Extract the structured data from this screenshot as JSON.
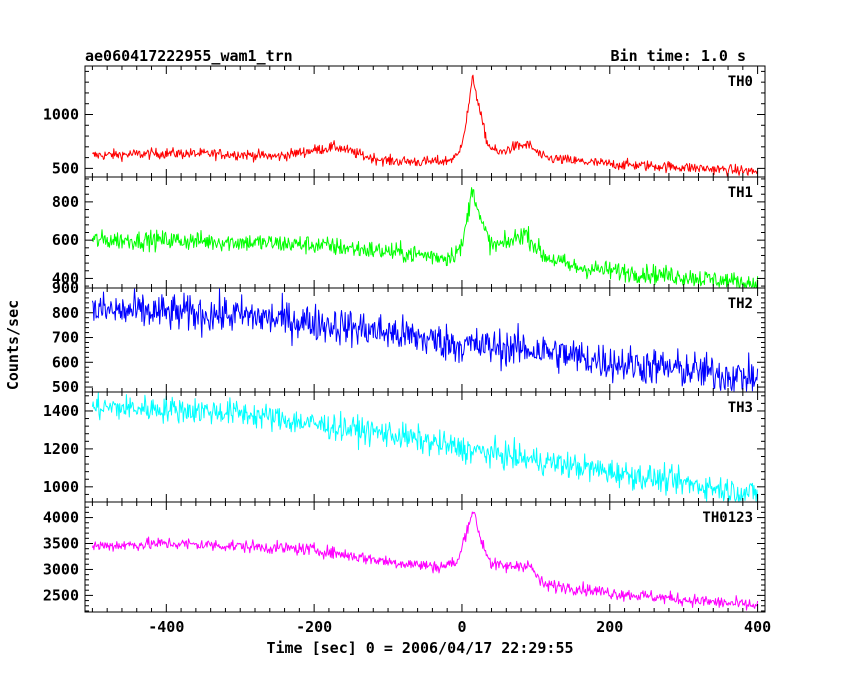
{
  "chart_data": {
    "type": "line",
    "title": "ae060417222955_wam1_trn",
    "subtitle": "Bin time: 1.0 s",
    "xlabel": "Time [sec] 0 = 2006/04/17 22:29:55",
    "ylabel": "Counts/sec",
    "xlim": [
      -510,
      410
    ],
    "x_ticks": [
      -400,
      -200,
      0,
      200,
      400
    ],
    "grid": false,
    "panels": [
      {
        "name": "TH0",
        "color": "#ff0000",
        "ylim": [
          420,
          1450
        ],
        "y_ticks": [
          500,
          1000
        ],
        "noise": 25,
        "x": [
          -500,
          -400,
          -300,
          -250,
          -200,
          -170,
          -130,
          -100,
          -50,
          -20,
          -5,
          5,
          15,
          25,
          35,
          50,
          70,
          90,
          110,
          150,
          200,
          300,
          400
        ],
        "y": [
          620,
          640,
          630,
          610,
          670,
          700,
          610,
          570,
          560,
          570,
          620,
          900,
          1350,
          1000,
          720,
          640,
          700,
          720,
          600,
          570,
          540,
          510,
          470
        ]
      },
      {
        "name": "TH1",
        "color": "#00ff00",
        "ylim": [
          350,
          930
        ],
        "y_ticks": [
          400,
          600,
          800
        ],
        "noise": 25,
        "x": [
          -500,
          -400,
          -300,
          -200,
          -100,
          -20,
          0,
          10,
          15,
          25,
          40,
          60,
          85,
          110,
          150,
          200,
          300,
          400
        ],
        "y": [
          600,
          600,
          590,
          575,
          540,
          510,
          560,
          780,
          880,
          700,
          570,
          580,
          640,
          520,
          460,
          440,
          410,
          370
        ]
      },
      {
        "name": "TH2",
        "color": "#0000ff",
        "ylim": [
          480,
          900
        ],
        "y_ticks": [
          500,
          600,
          700,
          800,
          900
        ],
        "noise": 38,
        "x": [
          -500,
          -400,
          -300,
          -200,
          -100,
          0,
          100,
          200,
          300,
          400
        ],
        "y": [
          810,
          800,
          790,
          760,
          720,
          670,
          650,
          600,
          570,
          535
        ]
      },
      {
        "name": "TH3",
        "color": "#00ffff",
        "ylim": [
          920,
          1500
        ],
        "y_ticks": [
          1000,
          1200,
          1400
        ],
        "noise": 35,
        "x": [
          -500,
          -400,
          -300,
          -200,
          -100,
          0,
          100,
          200,
          300,
          400
        ],
        "y": [
          1420,
          1410,
          1390,
          1330,
          1280,
          1200,
          1140,
          1080,
          1020,
          960
        ]
      },
      {
        "name": "TH0123",
        "color": "#ff00ff",
        "ylim": [
          2180,
          4300
        ],
        "y_ticks": [
          2500,
          3000,
          3500,
          4000
        ],
        "noise": 60,
        "x": [
          -500,
          -400,
          -300,
          -200,
          -100,
          -30,
          -5,
          5,
          15,
          25,
          40,
          60,
          90,
          110,
          150,
          200,
          300,
          400
        ],
        "y": [
          3450,
          3500,
          3450,
          3380,
          3150,
          3050,
          3150,
          3700,
          4150,
          3600,
          3100,
          3050,
          3100,
          2700,
          2650,
          2550,
          2420,
          2300
        ]
      }
    ]
  }
}
